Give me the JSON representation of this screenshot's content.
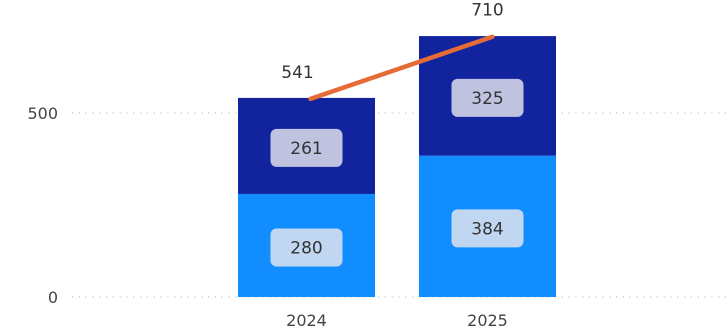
{
  "chart_data": {
    "type": "bar",
    "stacked": true,
    "categories": [
      "2024",
      "2025"
    ],
    "series": [
      {
        "values": [
          280,
          384
        ],
        "color": "#118DFF"
      },
      {
        "values": [
          261,
          325
        ],
        "color": "#12239E"
      }
    ],
    "totals": [
      541,
      710
    ],
    "total_line_color": "#E66C37",
    "yticks": [
      0,
      500
    ],
    "ylim": [
      0,
      710
    ],
    "grid": "dotted-horizontal",
    "data_label_background": "#e6e6ee"
  }
}
